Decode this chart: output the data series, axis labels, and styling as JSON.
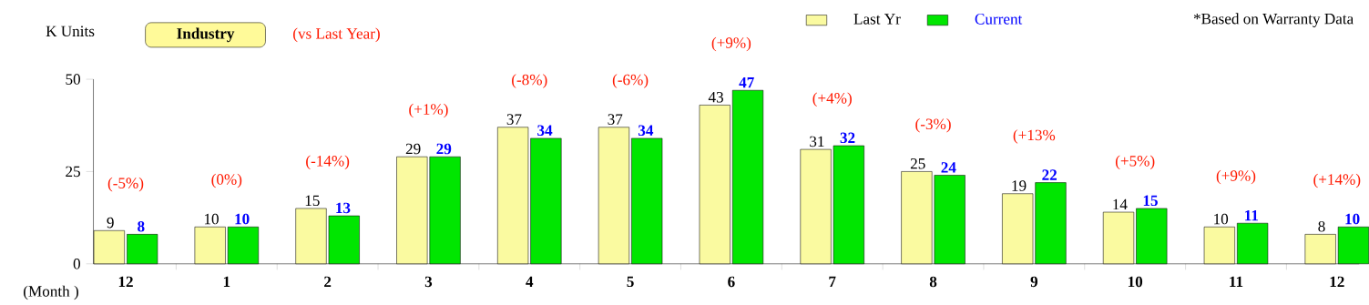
{
  "chart_data": {
    "type": "bar",
    "ylabel": "K Units",
    "xlabel": "(Month )",
    "categories": [
      "12",
      "1",
      "2",
      "3",
      "4",
      "5",
      "6",
      "7",
      "8",
      "9",
      "10",
      "11",
      "12"
    ],
    "series": [
      {
        "name": "Last Yr",
        "color": "#fafaa0",
        "values": [
          9,
          10,
          15,
          29,
          37,
          37,
          43,
          31,
          25,
          19,
          14,
          10,
          8
        ]
      },
      {
        "name": "Current",
        "color": "#00e600",
        "values": [
          8,
          10,
          13,
          29,
          34,
          34,
          47,
          32,
          24,
          22,
          15,
          11,
          10
        ]
      }
    ],
    "ylim": [
      0,
      50
    ],
    "yticks": [
      0,
      25,
      50
    ],
    "grid": false,
    "legend": "top",
    "data_labels": true,
    "annotations": [
      "(-5%)",
      "(0%)",
      "(-14%)",
      "(+1%)",
      "(-8%)",
      "(-6%)",
      "(+9%)",
      "(+4%)",
      "(-3%)",
      "(+13%",
      "(+5%)",
      "(+9%)",
      "(+14%)",
      "Industry",
      "(vs  Last Year)",
      "*Based  on Warranty Data"
    ]
  }
}
